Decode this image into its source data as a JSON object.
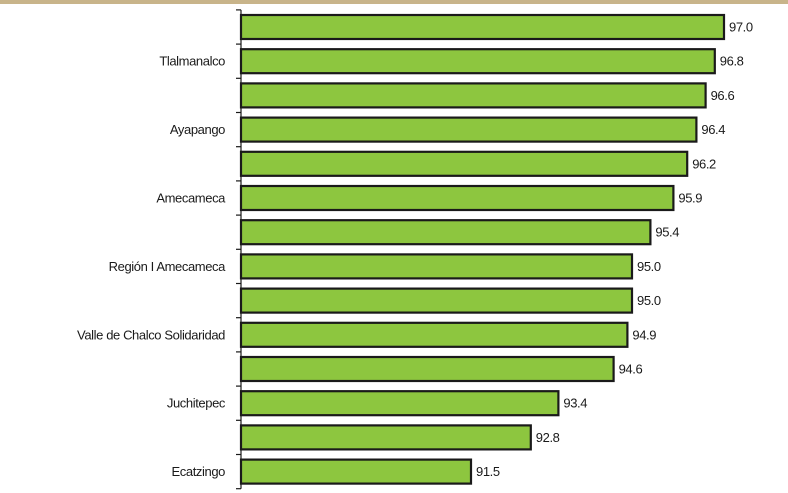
{
  "chart_data": {
    "type": "bar",
    "orientation": "horizontal",
    "title": "",
    "xlabel": "",
    "ylabel": "",
    "bar_color": "#8dc63f",
    "xlim": [
      86.5,
      97.3
    ],
    "categories": [
      "",
      "Tlalmanalco",
      "",
      "Ayapango",
      "",
      "Amecameca",
      "",
      "Región I Amecameca",
      "",
      "Valle de Chalco Solidaridad",
      "",
      "Juchitepec",
      "",
      "Ecatzingo"
    ],
    "values": [
      97.0,
      96.8,
      96.6,
      96.4,
      96.2,
      95.9,
      95.4,
      95.0,
      95.0,
      94.9,
      94.6,
      93.4,
      92.8,
      91.5
    ],
    "value_labels": [
      "97.0",
      "96.8",
      "96.6",
      "96.4",
      "96.2",
      "95.9",
      "95.4",
      "95.0",
      "95.0",
      "94.9",
      "94.6",
      "93.4",
      "92.8",
      "91.5"
    ],
    "legend": "none",
    "grid": false
  }
}
